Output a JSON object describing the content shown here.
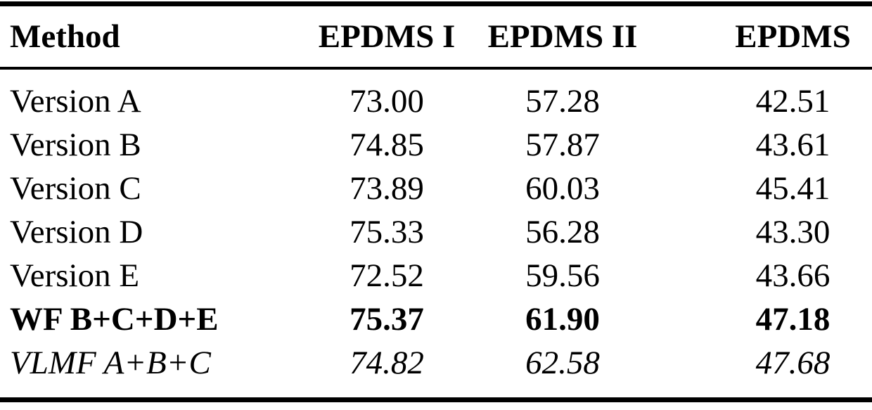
{
  "table": {
    "columns": [
      "Method",
      "EPDMS I",
      "EPDMS II",
      "EPDMS"
    ],
    "rows": [
      {
        "method": "Version A",
        "epdms1": "73.00",
        "epdms2": "57.28",
        "epdms": "42.51",
        "emphasis": "normal"
      },
      {
        "method": "Version B",
        "epdms1": "74.85",
        "epdms2": "57.87",
        "epdms": "43.61",
        "emphasis": "normal"
      },
      {
        "method": "Version C",
        "epdms1": "73.89",
        "epdms2": "60.03",
        "epdms": "45.41",
        "emphasis": "normal"
      },
      {
        "method": "Version D",
        "epdms1": "75.33",
        "epdms2": "56.28",
        "epdms": "43.30",
        "emphasis": "normal"
      },
      {
        "method": "Version E",
        "epdms1": "72.52",
        "epdms2": "59.56",
        "epdms": "43.66",
        "emphasis": "normal"
      },
      {
        "method": "WF B+C+D+E",
        "epdms1": "75.37",
        "epdms2": "61.90",
        "epdms": "47.18",
        "emphasis": "bold"
      },
      {
        "method": "VLMF A+B+C",
        "epdms1": "74.82",
        "epdms2": "62.58",
        "epdms": "47.68",
        "emphasis": "italic"
      }
    ],
    "colors": {
      "text": "#000000",
      "background": "#ffffff",
      "rule": "#000000"
    }
  }
}
